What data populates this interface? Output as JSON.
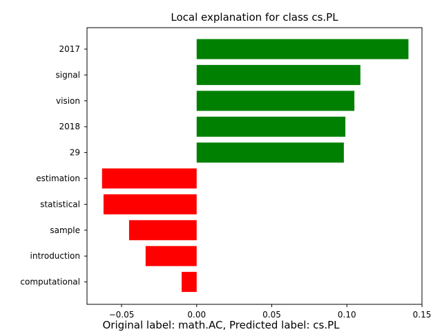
{
  "chart_data": {
    "type": "bar",
    "orientation": "horizontal",
    "title": "Local explanation for class cs.PL",
    "categories": [
      "2017",
      "signal",
      "vision",
      "2018",
      "29",
      "estimation",
      "statistical",
      "sample",
      "introduction",
      "computational"
    ],
    "values": [
      0.141,
      0.109,
      0.105,
      0.099,
      0.098,
      -0.063,
      -0.062,
      -0.045,
      -0.034,
      -0.01
    ],
    "xlim": [
      -0.073,
      0.15
    ],
    "xticks": [
      -0.05,
      0.0,
      0.05,
      0.1,
      0.15
    ],
    "xtick_labels": [
      "−0.05",
      "0.00",
      "0.05",
      "0.10",
      "0.15"
    ],
    "xlabel": "",
    "ylabel": "",
    "grid": false,
    "colors": {
      "positive": "#008000",
      "negative": "#ff0000"
    }
  },
  "caption": "Original label: math.AC, Predicted label: cs.PL"
}
